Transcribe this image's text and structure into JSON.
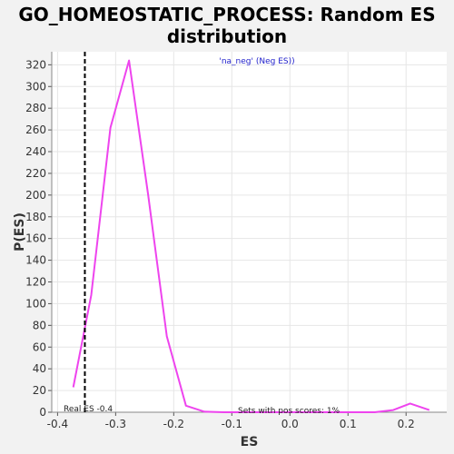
{
  "chart_data": {
    "type": "line",
    "title_lines": [
      "GO_HOMEOSTATIC_PROCESS: Random ES",
      "distribution"
    ],
    "xlabel": "ES",
    "ylabel": "P(ES)",
    "xlim": [
      -0.41,
      0.27
    ],
    "ylim": [
      0,
      332
    ],
    "xticks": [
      -0.4,
      -0.3,
      -0.2,
      -0.1,
      0.0,
      0.1,
      0.2
    ],
    "xtick_labels": [
      "-0.4",
      "-0.3",
      "-0.2",
      "-0.1",
      "0.0",
      "0.1",
      "0.2"
    ],
    "yticks": [
      0,
      20,
      40,
      60,
      80,
      100,
      120,
      140,
      160,
      180,
      200,
      220,
      240,
      260,
      280,
      300,
      320
    ],
    "grid": true,
    "series": [
      {
        "name": "'na_neg' (Neg ES))",
        "color": "#ee44ee",
        "x": [
          -0.373,
          -0.342,
          -0.309,
          -0.277,
          -0.244,
          -0.212,
          -0.179,
          -0.147,
          -0.114,
          -0.082,
          -0.049,
          -0.017,
          0.016,
          0.048,
          0.081,
          0.113,
          0.146,
          0.178,
          0.207,
          0.24
        ],
        "y": [
          23,
          108,
          262,
          324,
          200,
          70,
          6,
          0.5,
          0,
          0,
          0,
          0,
          0,
          0,
          0,
          0,
          0,
          2,
          8,
          2
        ]
      }
    ],
    "real_es": {
      "x": -0.353,
      "label": "Real ES -0.4",
      "style": "dashed",
      "color": "#000000"
    },
    "annotation": "Sets with pos scores: 1%",
    "legend_position": "top-center",
    "colors": {
      "background": "#f2f2f2",
      "plot_background": "#ffffff",
      "grid": "#e6e6e6",
      "legend_text": "#2222cc"
    }
  }
}
